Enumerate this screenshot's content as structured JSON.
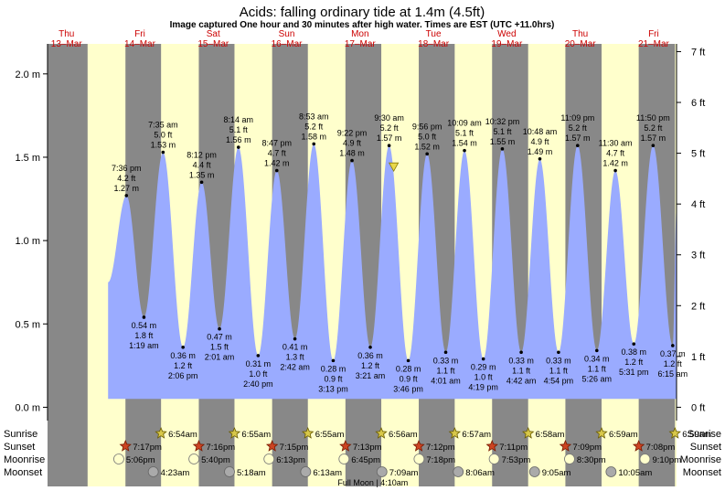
{
  "title": "Acids: falling  ordinary tide at 1.4m (4.5ft)",
  "subtitle": "Image captured One hour and 30 minutes after high water. Times are EST (UTC +11.0hrs)",
  "colors": {
    "day": "#ffffcc",
    "night": "#888888",
    "tide_fill": "#9aabff",
    "day_label": "#cc0000",
    "axis": "#000000"
  },
  "chart_data": {
    "type": "area",
    "title": "Acids: falling  ordinary tide at 1.4m (4.5ft)",
    "subtitle": "Image captured One hour and 30 minutes after high water. Times are EST (UTC +11.0hrs)",
    "x_range_hours": [
      -6.2,
      199.5
    ],
    "y_left": {
      "unit": "m",
      "ticks": [
        "0.0 m",
        "0.5 m",
        "1.0 m",
        "1.5 m",
        "2.0 m"
      ],
      "tick_values": [
        0,
        0.5,
        1.0,
        1.5,
        2.0
      ]
    },
    "y_right": {
      "unit": "ft",
      "ticks": [
        "0 ft",
        "1 ft",
        "2 ft",
        "3 ft",
        "4 ft",
        "5 ft",
        "6 ft",
        "7 ft"
      ],
      "tick_values": [
        0,
        1,
        2,
        3,
        4,
        5,
        6,
        7
      ]
    },
    "ylim_m": [
      -0.08,
      2.18
    ],
    "days": [
      {
        "dow": "Thu",
        "date": "13–Mar",
        "h": 0
      },
      {
        "dow": "Fri",
        "date": "14–Mar",
        "h": 24
      },
      {
        "dow": "Sat",
        "date": "15–Mar",
        "h": 48
      },
      {
        "dow": "Sun",
        "date": "16–Mar",
        "h": 72
      },
      {
        "dow": "Mon",
        "date": "17–Mar",
        "h": 96
      },
      {
        "dow": "Tue",
        "date": "18–Mar",
        "h": 120
      },
      {
        "dow": "Wed",
        "date": "19–Mar",
        "h": 144
      },
      {
        "dow": "Thu",
        "date": "20–Mar",
        "h": 168
      },
      {
        "dow": "Fri",
        "date": "21–Mar",
        "h": 192
      }
    ],
    "nights": [
      [
        -6.2,
        6.9
      ],
      [
        19.28,
        30.92
      ],
      [
        43.27,
        54.93
      ],
      [
        67.25,
        78.93
      ],
      [
        91.22,
        102.94
      ],
      [
        115.2,
        126.95
      ],
      [
        139.18,
        150.97
      ],
      [
        163.15,
        174.98
      ],
      [
        187.13,
        198.98
      ]
    ],
    "tide_series_start_m": 0.75,
    "tide_series_end_m": 1.2,
    "tides": [
      {
        "time": "7:36 pm",
        "ft": "4.2 ft",
        "m": 1.27,
        "type": "high",
        "h": 19.6
      },
      {
        "time": "1:19 am",
        "ft": "1.8 ft",
        "m": 0.54,
        "type": "low",
        "h": 25.32
      },
      {
        "time": "7:35 am",
        "ft": "5.0 ft",
        "m": 1.53,
        "type": "high",
        "h": 31.58
      },
      {
        "time": "2:06 pm",
        "ft": "1.2 ft",
        "m": 0.36,
        "type": "low",
        "h": 38.1
      },
      {
        "time": "8:12 pm",
        "ft": "4.4 ft",
        "m": 1.35,
        "type": "high",
        "h": 44.2
      },
      {
        "time": "2:01 am",
        "ft": "1.5 ft",
        "m": 0.47,
        "type": "low",
        "h": 50.02
      },
      {
        "time": "8:14 am",
        "ft": "5.1 ft",
        "m": 1.56,
        "type": "high",
        "h": 56.23
      },
      {
        "time": "2:40 pm",
        "ft": "1.0 ft",
        "m": 0.31,
        "type": "low",
        "h": 62.67
      },
      {
        "time": "8:47 pm",
        "ft": "4.7 ft",
        "m": 1.42,
        "type": "high",
        "h": 68.78
      },
      {
        "time": "2:42 am",
        "ft": "1.3 ft",
        "m": 0.41,
        "type": "low",
        "h": 74.7
      },
      {
        "time": "8:53 am",
        "ft": "5.2 ft",
        "m": 1.58,
        "type": "high",
        "h": 80.88
      },
      {
        "time": "3:13 pm",
        "ft": "0.9 ft",
        "m": 0.28,
        "type": "low",
        "h": 87.22
      },
      {
        "time": "9:22 pm",
        "ft": "4.9 ft",
        "m": 1.48,
        "type": "high",
        "h": 93.37
      },
      {
        "time": "3:21 am",
        "ft": "1.2 ft",
        "m": 0.36,
        "type": "low",
        "h": 99.35
      },
      {
        "time": "9:30 am",
        "ft": "5.2 ft",
        "m": 1.57,
        "type": "high",
        "h": 105.5
      },
      {
        "time": "3:46 pm",
        "ft": "0.9 ft",
        "m": 0.28,
        "type": "low",
        "h": 111.77
      },
      {
        "time": "9:56 pm",
        "ft": "5.0 ft",
        "m": 1.52,
        "type": "high",
        "h": 117.93
      },
      {
        "time": "4:01 am",
        "ft": "1.1 ft",
        "m": 0.33,
        "type": "low",
        "h": 124.02
      },
      {
        "time": "10:09 am",
        "ft": "5.1 ft",
        "m": 1.54,
        "type": "high",
        "h": 130.15
      },
      {
        "time": "4:19 pm",
        "ft": "1.0 ft",
        "m": 0.29,
        "type": "low",
        "h": 136.32
      },
      {
        "time": "10:32 pm",
        "ft": "5.1 ft",
        "m": 1.55,
        "type": "high",
        "h": 142.53
      },
      {
        "time": "4:42 am",
        "ft": "1.1 ft",
        "m": 0.33,
        "type": "low",
        "h": 148.7
      },
      {
        "time": "10:48 am",
        "ft": "4.9 ft",
        "m": 1.49,
        "type": "high",
        "h": 154.8
      },
      {
        "time": "4:54 pm",
        "ft": "1.1 ft",
        "m": 0.33,
        "type": "low",
        "h": 160.9
      },
      {
        "time": "11:09 pm",
        "ft": "5.2 ft",
        "m": 1.57,
        "type": "high",
        "h": 167.15
      },
      {
        "time": "5:26 am",
        "ft": "1.1 ft",
        "m": 0.34,
        "type": "low",
        "h": 173.43
      },
      {
        "time": "11:30 am",
        "ft": "4.7 ft",
        "m": 1.42,
        "type": "high",
        "h": 179.5
      },
      {
        "time": "5:31 pm",
        "ft": "1.2 ft",
        "m": 0.38,
        "type": "low",
        "h": 185.52
      },
      {
        "time": "11:50 pm",
        "ft": "5.2 ft",
        "m": 1.57,
        "type": "high",
        "h": 191.83
      },
      {
        "time": "6:15 am",
        "ft": "1.2 ft",
        "m": 0.37,
        "type": "low",
        "h": 198.25
      }
    ],
    "current": {
      "h": 107.0,
      "m": 1.4
    },
    "rows": [
      "Sunrise",
      "Sunset",
      "Moonrise",
      "Moonset"
    ],
    "sunrise": [
      {
        "time": "6:54am",
        "h": 30.9
      },
      {
        "time": "6:55am",
        "h": 54.92
      },
      {
        "time": "6:55am",
        "h": 78.92
      },
      {
        "time": "6:56am",
        "h": 102.93
      },
      {
        "time": "6:57am",
        "h": 126.95
      },
      {
        "time": "6:58am",
        "h": 150.97
      },
      {
        "time": "6:59am",
        "h": 174.98
      },
      {
        "time": "6:59am",
        "h": 198.98
      }
    ],
    "sunset": [
      {
        "time": "7:17pm",
        "h": 19.28
      },
      {
        "time": "7:16pm",
        "h": 43.27
      },
      {
        "time": "7:15pm",
        "h": 67.25
      },
      {
        "time": "7:13pm",
        "h": 91.22
      },
      {
        "time": "7:12pm",
        "h": 115.2
      },
      {
        "time": "7:11pm",
        "h": 139.18
      },
      {
        "time": "7:09pm",
        "h": 163.15
      },
      {
        "time": "7:08pm",
        "h": 187.13
      }
    ],
    "moonrise": [
      {
        "time": "5:06pm",
        "h": 17.1
      },
      {
        "time": "5:40pm",
        "h": 41.67
      },
      {
        "time": "6:13pm",
        "h": 66.22
      },
      {
        "time": "6:45pm",
        "h": 90.75
      },
      {
        "time": "7:18pm",
        "h": 115.3
      },
      {
        "time": "7:53pm",
        "h": 139.88
      },
      {
        "time": "8:30pm",
        "h": 164.5
      },
      {
        "time": "9:10pm",
        "h": 189.17
      }
    ],
    "moonset": [
      {
        "time": "4:23am",
        "h": 28.38
      },
      {
        "time": "5:18am",
        "h": 53.3
      },
      {
        "time": "6:13am",
        "h": 78.22
      },
      {
        "time": "7:09am",
        "h": 103.15
      },
      {
        "time": "8:06am",
        "h": 128.1
      },
      {
        "time": "9:05am",
        "h": 153.08
      },
      {
        "time": "10:05am",
        "h": 178.08
      }
    ],
    "moon_phase_label": "Full Moon | 4:10am",
    "moon_phase_h": 100.17
  }
}
